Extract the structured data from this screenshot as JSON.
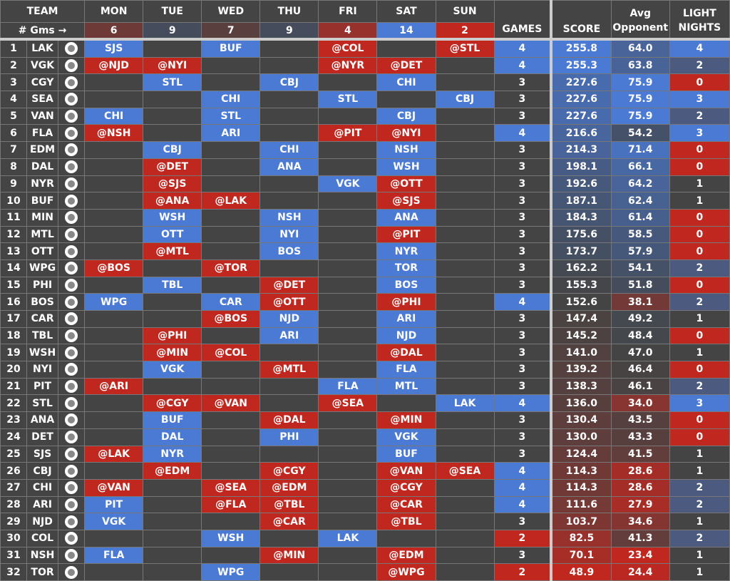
{
  "header": {
    "team": "TEAM",
    "gms_label": "# Gms →",
    "days": [
      "MON",
      "TUE",
      "WED",
      "THU",
      "FRI",
      "SAT",
      "SUN"
    ],
    "day_counts": [
      6,
      9,
      7,
      9,
      4,
      14,
      2
    ],
    "games": "GAMES",
    "score": "SCORE",
    "avg": "Avg Opponent",
    "light": "LIGHT NIGHTS"
  },
  "colors": {
    "home": "#4a7ad4",
    "away": "#c0271f",
    "base": "#444444"
  },
  "rows": [
    [
      1,
      "LAK",
      "SJS",
      "",
      "BUF",
      "",
      "@COL",
      "",
      "@STL",
      4,
      "255.8",
      "64.0",
      4
    ],
    [
      2,
      "VGK",
      "@NJD",
      "@NYI",
      "",
      "",
      "@NYR",
      "@DET",
      "",
      4,
      "255.3",
      "63.8",
      2
    ],
    [
      3,
      "CGY",
      "",
      "STL",
      "",
      "CBJ",
      "",
      "CHI",
      "",
      3,
      "227.6",
      "75.9",
      0
    ],
    [
      4,
      "SEA",
      "",
      "",
      "CHI",
      "",
      "STL",
      "",
      "CBJ",
      3,
      "227.6",
      "75.9",
      3
    ],
    [
      5,
      "VAN",
      "CHI",
      "",
      "STL",
      "",
      "",
      "CBJ",
      "",
      3,
      "227.6",
      "75.9",
      2
    ],
    [
      6,
      "FLA",
      "@NSH",
      "",
      "ARI",
      "",
      "@PIT",
      "@NYI",
      "",
      4,
      "216.6",
      "54.2",
      3
    ],
    [
      7,
      "EDM",
      "",
      "CBJ",
      "",
      "CHI",
      "",
      "NSH",
      "",
      3,
      "214.3",
      "71.4",
      0
    ],
    [
      8,
      "DAL",
      "",
      "@DET",
      "",
      "ANA",
      "",
      "WSH",
      "",
      3,
      "198.1",
      "66.1",
      0
    ],
    [
      9,
      "NYR",
      "",
      "@SJS",
      "",
      "",
      "VGK",
      "@OTT",
      "",
      3,
      "192.6",
      "64.2",
      1
    ],
    [
      10,
      "BUF",
      "",
      "@ANA",
      "@LAK",
      "",
      "",
      "@SJS",
      "",
      3,
      "187.1",
      "62.4",
      1
    ],
    [
      11,
      "MIN",
      "",
      "WSH",
      "",
      "NSH",
      "",
      "ANA",
      "",
      3,
      "184.3",
      "61.4",
      0
    ],
    [
      12,
      "MTL",
      "",
      "OTT",
      "",
      "NYI",
      "",
      "@PIT",
      "",
      3,
      "175.6",
      "58.5",
      0
    ],
    [
      13,
      "OTT",
      "",
      "@MTL",
      "",
      "BOS",
      "",
      "NYR",
      "",
      3,
      "173.7",
      "57.9",
      0
    ],
    [
      14,
      "WPG",
      "@BOS",
      "",
      "@TOR",
      "",
      "",
      "TOR",
      "",
      3,
      "162.2",
      "54.1",
      2
    ],
    [
      15,
      "PHI",
      "",
      "TBL",
      "",
      "@DET",
      "",
      "BOS",
      "",
      3,
      "155.3",
      "51.8",
      0
    ],
    [
      16,
      "BOS",
      "WPG",
      "",
      "CAR",
      "@OTT",
      "",
      "@PHI",
      "",
      4,
      "152.6",
      "38.1",
      2
    ],
    [
      17,
      "CAR",
      "",
      "",
      "@BOS",
      "NJD",
      "",
      "ARI",
      "",
      3,
      "147.4",
      "49.2",
      1
    ],
    [
      18,
      "TBL",
      "",
      "@PHI",
      "",
      "ARI",
      "",
      "NJD",
      "",
      3,
      "145.2",
      "48.4",
      0
    ],
    [
      19,
      "WSH",
      "",
      "@MIN",
      "@COL",
      "",
      "",
      "@DAL",
      "",
      3,
      "141.0",
      "47.0",
      1
    ],
    [
      20,
      "NYI",
      "",
      "VGK",
      "",
      "@MTL",
      "",
      "FLA",
      "",
      3,
      "139.2",
      "46.4",
      0
    ],
    [
      21,
      "PIT",
      "@ARI",
      "",
      "",
      "",
      "FLA",
      "MTL",
      "",
      3,
      "138.3",
      "46.1",
      2
    ],
    [
      22,
      "STL",
      "",
      "@CGY",
      "@VAN",
      "",
      "@SEA",
      "",
      "LAK",
      4,
      "136.0",
      "34.0",
      3
    ],
    [
      23,
      "ANA",
      "",
      "BUF",
      "",
      "@DAL",
      "",
      "@MIN",
      "",
      3,
      "130.4",
      "43.5",
      0
    ],
    [
      24,
      "DET",
      "",
      "DAL",
      "",
      "PHI",
      "",
      "VGK",
      "",
      3,
      "130.0",
      "43.3",
      0
    ],
    [
      25,
      "SJS",
      "@LAK",
      "NYR",
      "",
      "",
      "",
      "BUF",
      "",
      3,
      "124.4",
      "41.5",
      1
    ],
    [
      26,
      "CBJ",
      "",
      "@EDM",
      "",
      "@CGY",
      "",
      "@VAN",
      "@SEA",
      4,
      "114.3",
      "28.6",
      1
    ],
    [
      27,
      "CHI",
      "@VAN",
      "",
      "@SEA",
      "@EDM",
      "",
      "@CGY",
      "",
      4,
      "114.3",
      "28.6",
      2
    ],
    [
      28,
      "ARI",
      "PIT",
      "",
      "@FLA",
      "@TBL",
      "",
      "@CAR",
      "",
      4,
      "111.6",
      "27.9",
      2
    ],
    [
      29,
      "NJD",
      "VGK",
      "",
      "",
      "@CAR",
      "",
      "@TBL",
      "",
      3,
      "103.7",
      "34.6",
      1
    ],
    [
      30,
      "COL",
      "",
      "",
      "WSH",
      "",
      "LAK",
      "",
      "",
      2,
      "82.5",
      "41.3",
      2
    ],
    [
      31,
      "NSH",
      "FLA",
      "",
      "",
      "@MIN",
      "",
      "@EDM",
      "",
      3,
      "70.1",
      "23.4",
      1
    ],
    [
      32,
      "TOR",
      "",
      "",
      "WPG",
      "",
      "",
      "@WPG",
      "",
      2,
      "48.9",
      "24.4",
      1
    ]
  ]
}
